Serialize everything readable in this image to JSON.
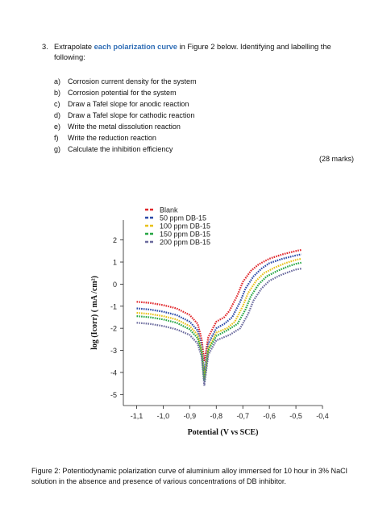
{
  "question": {
    "number": "3.",
    "text_before": "Extrapolate ",
    "highlight": "each polarization curve",
    "text_after": " in Figure 2 below. Identifying and labelling the following:",
    "items": [
      {
        "label": "a)",
        "text": "Corrosion current density for the system"
      },
      {
        "label": "b)",
        "text": "Corrosion potential for the system"
      },
      {
        "label": "c)",
        "text": "Draw a Tafel slope for anodic reaction"
      },
      {
        "label": "d)",
        "text": "Draw a Tafel slope for cathodic reaction"
      },
      {
        "label": "e)",
        "text": "Write the metal dissolution reaction"
      },
      {
        "label": "f)",
        "text": "Write the reduction reaction"
      },
      {
        "label": "g)",
        "text": "Calculate the inhibition efficiency"
      }
    ],
    "marks": "(28 marks)"
  },
  "figure_caption": "Figure 2: Potentiodynamic polarization curve of aluminium alloy immersed for 10 hour in 3% NaCl solution in the absence and presence of various concentrations of DB inhibitor.",
  "chart_data": {
    "type": "line",
    "xlabel": "Potential (V vs SCE)",
    "ylabel": "log (Icorr) ( mA /cm²)",
    "xlim": [
      -1.15,
      -0.4
    ],
    "ylim": [
      -5.5,
      2.9
    ],
    "x_ticks": [
      "-1,1",
      "-1,0",
      "-0,9",
      "-0,8",
      "-0,7",
      "-0,6",
      "-0,5",
      "-0,4"
    ],
    "x_tick_values": [
      -1.1,
      -1.0,
      -0.9,
      -0.8,
      -0.7,
      -0.6,
      -0.5,
      -0.4
    ],
    "y_ticks": [
      "2",
      "1",
      "0",
      "-1",
      "-2",
      "-3",
      "-4",
      "-5"
    ],
    "y_tick_values": [
      2,
      1,
      0,
      -1,
      -2,
      -3,
      -4,
      -5
    ],
    "legend_position": "top-left",
    "series": [
      {
        "name": "Blank",
        "color": "#e0262b",
        "x": [
          -1.1,
          -1.05,
          -1.0,
          -0.95,
          -0.9,
          -0.87,
          -0.855,
          -0.845,
          -0.83,
          -0.8,
          -0.77,
          -0.75,
          -0.72,
          -0.7,
          -0.67,
          -0.64,
          -0.6,
          -0.55,
          -0.5,
          -0.48
        ],
        "y": [
          -0.8,
          -0.85,
          -0.95,
          -1.1,
          -1.4,
          -1.8,
          -2.5,
          -3.5,
          -2.4,
          -1.7,
          -1.5,
          -1.2,
          -0.5,
          0.1,
          0.6,
          0.9,
          1.15,
          1.35,
          1.5,
          1.55
        ]
      },
      {
        "name": "50 ppm DB-15",
        "color": "#2b4aa8",
        "x": [
          -1.1,
          -1.05,
          -1.0,
          -0.95,
          -0.9,
          -0.87,
          -0.855,
          -0.845,
          -0.83,
          -0.8,
          -0.77,
          -0.74,
          -0.71,
          -0.69,
          -0.66,
          -0.63,
          -0.6,
          -0.55,
          -0.5,
          -0.48
        ],
        "y": [
          -1.1,
          -1.15,
          -1.25,
          -1.4,
          -1.7,
          -2.1,
          -2.8,
          -4.0,
          -2.7,
          -2.0,
          -1.8,
          -1.5,
          -0.8,
          -0.2,
          0.35,
          0.7,
          0.95,
          1.15,
          1.3,
          1.35
        ]
      },
      {
        "name": "100 ppm DB-15",
        "color": "#e8c21a",
        "x": [
          -1.1,
          -1.05,
          -1.0,
          -0.95,
          -0.9,
          -0.87,
          -0.855,
          -0.845,
          -0.83,
          -0.8,
          -0.76,
          -0.73,
          -0.7,
          -0.68,
          -0.65,
          -0.62,
          -0.58,
          -0.54,
          -0.5,
          -0.48
        ],
        "y": [
          -1.3,
          -1.35,
          -1.45,
          -1.6,
          -1.9,
          -2.3,
          -3.0,
          -4.3,
          -2.9,
          -2.2,
          -2.0,
          -1.7,
          -1.0,
          -0.4,
          0.15,
          0.5,
          0.75,
          0.95,
          1.1,
          1.15
        ]
      },
      {
        "name": "150 ppm DB-15",
        "color": "#27a644",
        "x": [
          -1.1,
          -1.05,
          -1.0,
          -0.95,
          -0.9,
          -0.87,
          -0.855,
          -0.845,
          -0.83,
          -0.8,
          -0.76,
          -0.72,
          -0.69,
          -0.67,
          -0.64,
          -0.61,
          -0.57,
          -0.53,
          -0.5,
          -0.48
        ],
        "y": [
          -1.45,
          -1.5,
          -1.6,
          -1.75,
          -2.05,
          -2.45,
          -3.1,
          -4.4,
          -3.0,
          -2.35,
          -2.1,
          -1.8,
          -1.15,
          -0.55,
          0.0,
          0.35,
          0.6,
          0.8,
          0.92,
          0.97
        ]
      },
      {
        "name": "200 ppm DB-15",
        "color": "#6b6b9e",
        "x": [
          -1.1,
          -1.05,
          -1.0,
          -0.95,
          -0.9,
          -0.87,
          -0.855,
          -0.845,
          -0.83,
          -0.8,
          -0.75,
          -0.71,
          -0.68,
          -0.66,
          -0.63,
          -0.6,
          -0.56,
          -0.52,
          -0.5,
          -0.48
        ],
        "y": [
          -1.75,
          -1.8,
          -1.9,
          -2.05,
          -2.3,
          -2.7,
          -3.3,
          -4.6,
          -3.2,
          -2.55,
          -2.3,
          -2.0,
          -1.35,
          -0.75,
          -0.2,
          0.15,
          0.4,
          0.58,
          0.66,
          0.7
        ]
      }
    ]
  }
}
